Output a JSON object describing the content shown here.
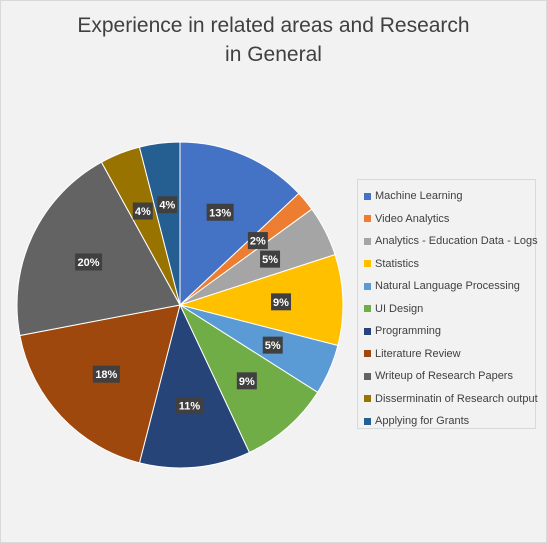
{
  "chart_data": {
    "type": "pie",
    "title_lines": [
      "Experience in related areas and Research",
      "in General"
    ],
    "categories": [
      "Machine Learning",
      "Video Analytics",
      "Analytics - Education Data - Logs",
      "Statistics",
      "Natural Language Processing",
      "UI Design",
      "Programming",
      "Literature Review",
      "Writeup of Research Papers",
      "Disserminatin of Research output",
      "Applying for Grants"
    ],
    "values": [
      13,
      2,
      5,
      9,
      5,
      9,
      11,
      18,
      20,
      4,
      4
    ],
    "data_labels": [
      "13%",
      "2%",
      "5%",
      "9%",
      "5%",
      "9%",
      "11%",
      "18%",
      "20%",
      "4%",
      "4%"
    ],
    "colors": [
      "#4472c4",
      "#ed7d31",
      "#a5a5a5",
      "#ffc000",
      "#5b9bd5",
      "#70ad47",
      "#264478",
      "#9e480e",
      "#636363",
      "#997300",
      "#255e91"
    ],
    "legend_position": "right",
    "start_angle": "12 o'clock, clockwise"
  }
}
